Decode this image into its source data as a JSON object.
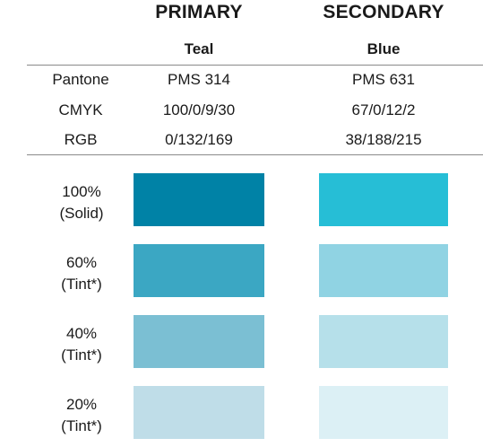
{
  "columns": {
    "primary": {
      "heading": "PRIMARY",
      "name": "Teal"
    },
    "secondary": {
      "heading": "SECONDARY",
      "name": "Blue"
    }
  },
  "specs": [
    {
      "label": "Pantone",
      "primary": "PMS 314",
      "secondary": "PMS 631"
    },
    {
      "label": "CMYK",
      "primary": "100/0/9/30",
      "secondary": "67/0/12/2"
    },
    {
      "label": "RGB",
      "primary": "0/132/169",
      "secondary": "38/188/215"
    }
  ],
  "tints": [
    {
      "percent": "100%",
      "kind": "(Solid)",
      "primary_color": "#0082a6",
      "secondary_color": "#26bed6"
    },
    {
      "percent": "60%",
      "kind": "(Tint*)",
      "primary_color": "#3ba7c3",
      "secondary_color": "#90d3e3"
    },
    {
      "percent": "40%",
      "kind": "(Tint*)",
      "primary_color": "#7bbfd3",
      "secondary_color": "#b6e0ea"
    },
    {
      "percent": "20%",
      "kind": "(Tint*)",
      "primary_color": "#bfdde8",
      "secondary_color": "#dcf0f5"
    }
  ]
}
